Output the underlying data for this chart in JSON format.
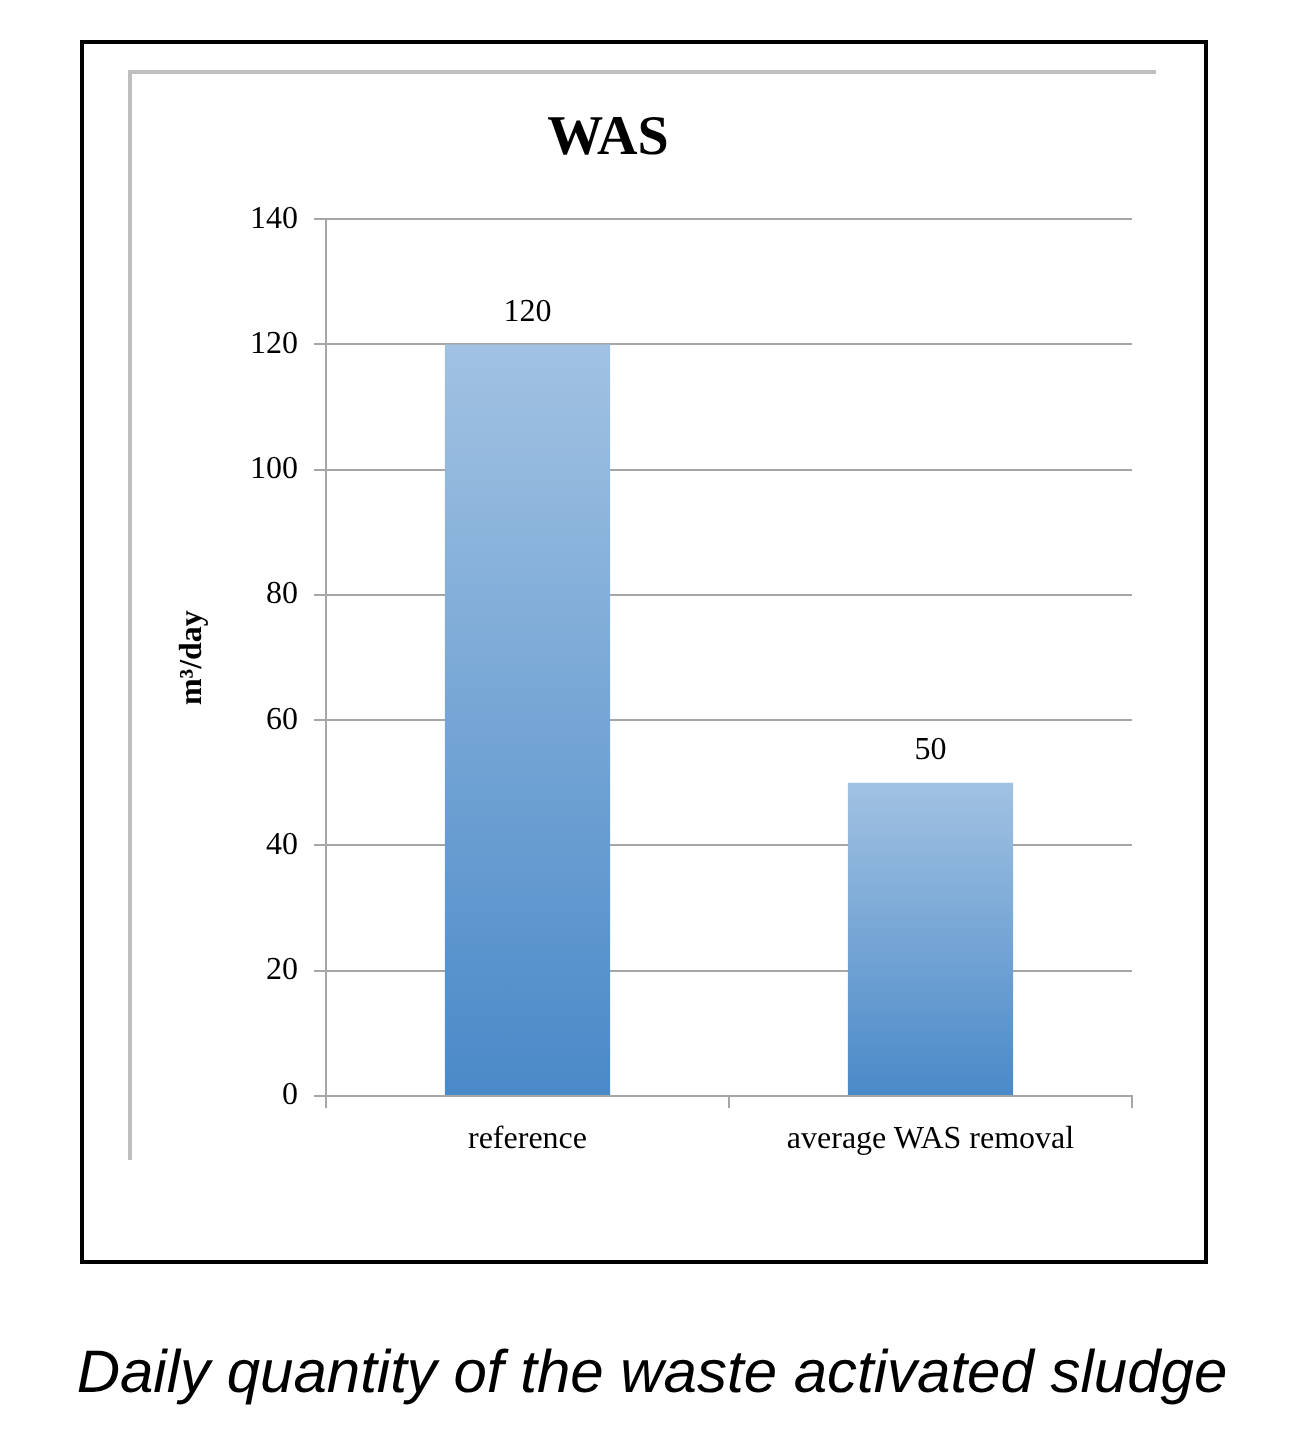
{
  "chart_data": {
    "type": "bar",
    "title": "WAS",
    "ylabel": "m³/day",
    "categories": [
      "reference",
      "average WAS removal"
    ],
    "values": [
      120,
      50
    ],
    "color": "#4a89c8",
    "ylim": [
      0,
      140
    ],
    "yticks": [
      0,
      20,
      40,
      60,
      80,
      100,
      120,
      140
    ],
    "grid": "y",
    "data_labels": true,
    "annotations": [
      "Daily quantity of the waste activated sludge"
    ]
  }
}
